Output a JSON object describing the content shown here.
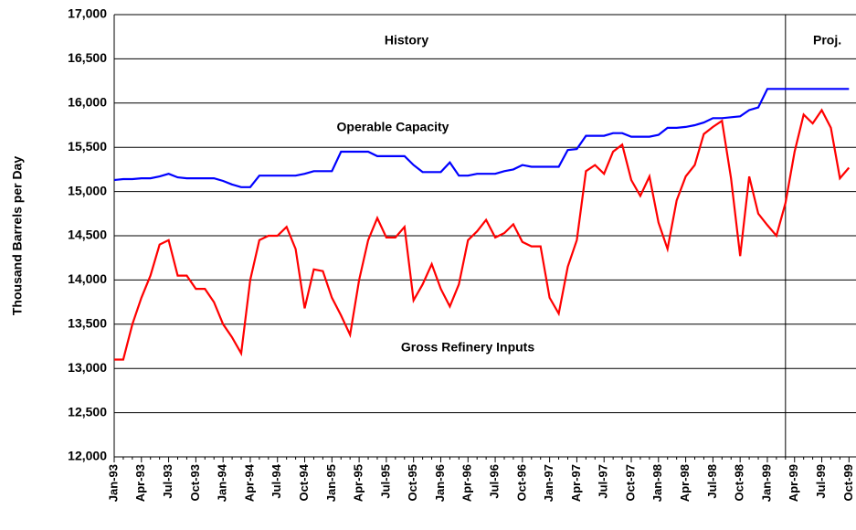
{
  "chart_data": {
    "type": "line",
    "y_label": "Thousand Barrels per Day",
    "annotations": [
      "History",
      "Proj.",
      "Operable Capacity",
      "Gross Refinery Inputs"
    ],
    "categories": [
      "Jan-93",
      null,
      null,
      "Apr-93",
      null,
      null,
      "Jul-93",
      null,
      null,
      "Oct-93",
      null,
      null,
      "Jan-94",
      null,
      null,
      "Apr-94",
      null,
      null,
      "Jul-94",
      null,
      null,
      "Oct-94",
      null,
      null,
      "Jan-95",
      null,
      null,
      "Apr-95",
      null,
      null,
      "Jul-95",
      null,
      null,
      "Oct-95",
      null,
      null,
      "Jan-96",
      null,
      null,
      "Apr-96",
      null,
      null,
      "Jul-96",
      null,
      null,
      "Oct-96",
      null,
      null,
      "Jan-97",
      null,
      null,
      "Apr-97",
      null,
      null,
      "Jul-97",
      null,
      null,
      "Oct-97",
      null,
      null,
      "Jan-98",
      null,
      null,
      "Apr-98",
      null,
      null,
      "Jul-98",
      null,
      null,
      "Oct-98",
      null,
      null,
      "Jan-99",
      null,
      null,
      "Apr-99",
      null,
      null,
      "Jul-99",
      null,
      null,
      "Oct-99"
    ],
    "series": [
      {
        "name": "Operable Capacity",
        "color": "#0000ff",
        "values": [
          15130,
          15140,
          15140,
          15150,
          15150,
          15170,
          15200,
          15160,
          15150,
          15150,
          15150,
          15150,
          15120,
          15080,
          15050,
          15050,
          15180,
          15180,
          15180,
          15180,
          15180,
          15200,
          15230,
          15230,
          15230,
          15450,
          15450,
          15450,
          15450,
          15400,
          15400,
          15400,
          15400,
          15300,
          15220,
          15220,
          15220,
          15330,
          15180,
          15180,
          15200,
          15200,
          15200,
          15230,
          15250,
          15300,
          15280,
          15280,
          15280,
          15280,
          15470,
          15480,
          15630,
          15630,
          15630,
          15660,
          15660,
          15620,
          15620,
          15620,
          15640,
          15720,
          15720,
          15730,
          15750,
          15780,
          15830,
          15830,
          15840,
          15850,
          15920,
          15950,
          16160,
          16160,
          16160,
          16160,
          16160,
          16160,
          16160,
          16160,
          16160,
          16160
        ]
      },
      {
        "name": "Gross Refinery Inputs",
        "color": "#ff0000",
        "values": [
          13100,
          13100,
          13500,
          13800,
          14050,
          14400,
          14450,
          14050,
          14050,
          13900,
          13900,
          13750,
          13500,
          13350,
          13170,
          14000,
          14450,
          14500,
          14500,
          14600,
          14350,
          13680,
          14120,
          14100,
          13800,
          13600,
          13380,
          14000,
          14450,
          14700,
          14480,
          14480,
          14600,
          13770,
          13950,
          14180,
          13900,
          13700,
          13950,
          14450,
          14550,
          14680,
          14480,
          14530,
          14630,
          14430,
          14380,
          14380,
          13800,
          13620,
          14150,
          14450,
          15230,
          15300,
          15200,
          15450,
          15530,
          15130,
          14950,
          15170,
          14650,
          14350,
          14900,
          15170,
          15300,
          15650,
          15730,
          15800,
          15150,
          14270,
          15170,
          14750,
          14620,
          14500,
          14870,
          15450,
          15870,
          15770,
          15920,
          15720,
          15150,
          15270
        ]
      }
    ],
    "ylim": [
      12000,
      17000
    ],
    "yticks": [
      {
        "value": 12000,
        "label": "12,000"
      },
      {
        "value": 12500,
        "label": "12,500"
      },
      {
        "value": 13000,
        "label": "13,000"
      },
      {
        "value": 13500,
        "label": "13,500"
      },
      {
        "value": 14000,
        "label": "14,000"
      },
      {
        "value": 14500,
        "label": "14,500"
      },
      {
        "value": 15000,
        "label": "15,000"
      },
      {
        "value": 15500,
        "label": "15,500"
      },
      {
        "value": 16000,
        "label": "16,000"
      },
      {
        "value": 16500,
        "label": "16,500"
      },
      {
        "value": 17000,
        "label": "17,000"
      }
    ],
    "grid": true
  }
}
